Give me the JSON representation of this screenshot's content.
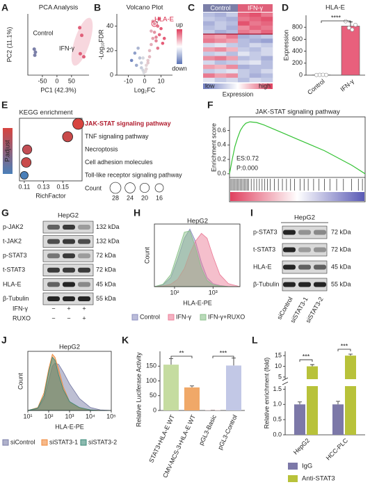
{
  "A": {
    "letter": "A",
    "title": "PCA Analysis",
    "xlabel": "PC1 (42.3%)",
    "ylabel": "PC2 (11.1%)",
    "xlim": [
      -100,
      110
    ],
    "ylim": [
      -40,
      40
    ],
    "xticks": [
      -50,
      0,
      50
    ],
    "groups": [
      {
        "name": "Control",
        "color": "#7b7fa8",
        "x": [
          -78,
          -76,
          -74
        ],
        "y": [
          -6,
          -14,
          -10
        ]
      },
      {
        "name": "IFN-γ",
        "color": "#e0607a",
        "x": [
          78,
          85,
          80,
          92
        ],
        "y": [
          22,
          12,
          -12,
          -16
        ]
      }
    ]
  },
  "B": {
    "letter": "B",
    "title": "Volcano Plot",
    "xlabel": "Log₂FC",
    "ylabel": "-Log₁₀FDR",
    "xlim": [
      -17,
      17
    ],
    "ylim": [
      0,
      50
    ],
    "xticks": [
      -10,
      0,
      10
    ],
    "yticks": [
      0,
      20,
      40
    ],
    "up_color": "#e0405f",
    "down_color": "#5a73b5",
    "legend": [
      "up",
      "down"
    ],
    "x": [
      -8,
      -6,
      -5,
      -4,
      -3,
      -2,
      -1,
      -0.5,
      0.5,
      1,
      2,
      3,
      4,
      5,
      6,
      7,
      8,
      9,
      10,
      11,
      12,
      3,
      5,
      -2,
      2,
      4,
      6,
      8,
      1,
      -1,
      7,
      9
    ],
    "y": [
      12,
      18,
      8,
      22,
      14,
      6,
      4,
      2,
      3,
      5,
      10,
      15,
      25,
      30,
      35,
      28,
      40,
      33,
      38,
      26,
      30,
      20,
      44,
      10,
      12,
      36,
      42,
      22,
      8,
      14,
      31,
      46
    ],
    "highlight": {
      "label": "HLA-E",
      "x": 6,
      "y": 42
    }
  },
  "C": {
    "letter": "C",
    "groups": [
      "Control",
      "IFN-γ"
    ],
    "group_colors": [
      "#7b7fa8",
      "#e0607a"
    ],
    "low_color": "#6f7cc0",
    "high_color": "#e0405f",
    "legend": {
      "low": "low",
      "high": "high",
      "title": "Expression"
    },
    "matrix": [
      [
        -0.5,
        -0.6,
        -0.4,
        0.8,
        0.9,
        0.7
      ],
      [
        -0.4,
        -0.5,
        -0.6,
        0.7,
        0.8,
        0.9
      ],
      [
        -0.6,
        -0.4,
        -0.5,
        0.9,
        0.7,
        0.8
      ],
      [
        -0.5,
        -0.4,
        -0.6,
        0.6,
        0.8,
        0.7
      ],
      [
        -0.4,
        -0.6,
        -0.5,
        0.7,
        0.6,
        0.8
      ],
      [
        0.6,
        0.5,
        0.7,
        -0.6,
        -0.5,
        -0.4
      ],
      [
        0.7,
        0.6,
        0.5,
        -0.5,
        -0.6,
        -0.7
      ],
      [
        -0.3,
        -0.2,
        -0.4,
        -0.5,
        -0.3,
        -0.4
      ],
      [
        0.5,
        0.6,
        0.4,
        -0.4,
        -0.5,
        -0.3
      ],
      [
        -0.4,
        -0.3,
        -0.5,
        -0.2,
        -0.4,
        -0.3
      ],
      [
        0.6,
        0.7,
        0.5,
        -0.5,
        -0.4,
        -0.6
      ],
      [
        -0.3,
        -0.5,
        -0.4,
        -0.3,
        -0.2,
        -0.5
      ],
      [
        0.5,
        0.4,
        0.6,
        -0.6,
        -0.5,
        -0.5
      ],
      [
        -0.4,
        -0.3,
        -0.2,
        -0.4,
        -0.5,
        -0.3
      ],
      [
        0.7,
        0.5,
        0.6,
        -0.4,
        -0.6,
        -0.5
      ],
      [
        -0.2,
        -0.4,
        -0.3,
        -0.5,
        -0.3,
        -0.4
      ]
    ]
  },
  "D": {
    "letter": "D",
    "title": "HLA-E",
    "ylabel": "Expression",
    "categories": [
      "Control",
      "IFN-γ"
    ],
    "values": [
      4,
      820
    ],
    "errors": [
      2,
      70
    ],
    "points": [
      [
        3,
        5,
        6,
        4
      ],
      [
        900,
        790,
        760,
        840
      ]
    ],
    "colors": [
      "#ffffff",
      "#e8607c"
    ],
    "ylim": [
      0,
      1000
    ],
    "yticks": [
      0,
      200,
      400,
      600,
      800
    ],
    "significance": "****"
  },
  "E": {
    "letter": "E",
    "title": "KEGG enrichment",
    "xlabel": "RichFactor",
    "color_label": "P.adjust",
    "size_label": "Count",
    "xlim": [
      0.105,
      0.17
    ],
    "xticks": [
      0.11,
      0.13,
      0.15
    ],
    "pathways": [
      "JAK-STAT signaling pathway",
      "TNF signaling pathway",
      "Necroptosis",
      "Cell adhesion molecules",
      "Toll-like receptor signaling pathway"
    ],
    "richfactor": [
      0.166,
      0.155,
      0.113,
      0.112,
      0.11
    ],
    "count": [
      28,
      24,
      20,
      22,
      14
    ],
    "colors": [
      "#d7443f",
      "#c94a4a",
      "#c34e55",
      "#c94a4a",
      "#4a7fb8"
    ],
    "colorbar_colors": [
      "#d7443f",
      "#4a7fb8"
    ],
    "size_legend": [
      28,
      24,
      20,
      16
    ]
  },
  "F": {
    "letter": "F",
    "title": "JAK-STAT signaling pathway",
    "ylabel": "Enrichment score",
    "es": "ES:0.72",
    "p": "P:0.000",
    "color": "#33c233",
    "xlim": [
      0,
      100
    ],
    "ylim": [
      -0.05,
      0.75
    ],
    "yticks": [
      {
        "value": 0,
        "label": "0.0"
      },
      0.2,
      0.4,
      0.6
    ],
    "x": [
      0,
      2,
      4,
      6,
      8,
      10,
      12,
      15,
      20,
      25,
      30,
      40,
      50,
      60,
      70,
      80,
      90,
      100
    ],
    "values": [
      0,
      0.2,
      0.38,
      0.5,
      0.6,
      0.66,
      0.7,
      0.72,
      0.71,
      0.68,
      0.64,
      0.56,
      0.48,
      0.4,
      0.32,
      0.22,
      0.12,
      0
    ],
    "hits": [
      1,
      2,
      3,
      4,
      5,
      6,
      7,
      8,
      9,
      10,
      11,
      12,
      13,
      14,
      16,
      18,
      20,
      22,
      24,
      26,
      28,
      30,
      33,
      36,
      39,
      42,
      45,
      48,
      52,
      55,
      58,
      62,
      66,
      70,
      74,
      79,
      84,
      90,
      95,
      98
    ],
    "rank_colors": [
      "#e0405f",
      "#ffffff",
      "#5a5ab5"
    ]
  },
  "G": {
    "letter": "G",
    "title": "HepG2",
    "rows": [
      {
        "name": "p-JAK2",
        "size": "132 kDa"
      },
      {
        "name": "t-JAK2",
        "size": "132 kDa"
      },
      {
        "name": "p-STAT3",
        "size": "72 kDa"
      },
      {
        "name": "t-STAT3",
        "size": "72 kDa"
      },
      {
        "name": "HLA-E",
        "size": "45 kDa"
      },
      {
        "name": "β-Tubulin",
        "size": "55 kDa"
      }
    ],
    "band_intensity": [
      [
        0.6,
        0.8,
        0.3
      ],
      [
        0.7,
        0.8,
        0.7
      ],
      [
        0.5,
        0.8,
        0.3
      ],
      [
        0.8,
        0.8,
        0.8
      ],
      [
        0.6,
        0.9,
        0.4
      ],
      [
        0.9,
        0.9,
        0.9
      ]
    ],
    "treatments": [
      {
        "name": "IFN-γ",
        "signs": [
          "−",
          "+",
          "+"
        ]
      },
      {
        "name": "RUXO",
        "signs": [
          "−",
          "−",
          "+"
        ]
      }
    ]
  },
  "H": {
    "letter": "H",
    "title": "HepG2",
    "xlabel": "HLA-E-PE",
    "ylabel": "Count",
    "xlim": [
      30,
      5000
    ],
    "ylim": [
      0,
      100
    ],
    "xticks": [
      {
        "value": 100,
        "label": "10²"
      },
      {
        "value": 1000,
        "label": "10³"
      }
    ],
    "x": [
      30,
      50,
      80,
      120,
      180,
      250,
      350,
      500,
      700,
      1000,
      1500,
      2500,
      5000
    ],
    "series": [
      {
        "name": "Control",
        "color": "#8d8fc0",
        "values": [
          0,
          3,
          15,
          45,
          80,
          95,
          75,
          40,
          15,
          5,
          2,
          0,
          0
        ]
      },
      {
        "name": "IFN-γ",
        "color": "#ec7f9a",
        "values": [
          0,
          1,
          4,
          12,
          30,
          55,
          75,
          88,
          80,
          50,
          20,
          5,
          0
        ]
      },
      {
        "name": "IFN-γ+RUXO",
        "color": "#8cc28c",
        "values": [
          0,
          4,
          20,
          55,
          90,
          92,
          65,
          30,
          10,
          3,
          1,
          0,
          0
        ]
      }
    ]
  },
  "I": {
    "letter": "I",
    "title": "HepG2",
    "rows": [
      {
        "name": "p-STAT3",
        "size": "72 kDa"
      },
      {
        "name": "t-STAT3",
        "size": "72 kDa"
      },
      {
        "name": "HLA-E",
        "size": "45 kDa"
      },
      {
        "name": "β-Tubulin",
        "size": "55 kDa"
      }
    ],
    "band_intensity": [
      [
        0.9,
        0.35,
        0.4
      ],
      [
        0.9,
        0.3,
        0.35
      ],
      [
        0.9,
        0.6,
        0.6
      ],
      [
        0.9,
        0.9,
        0.9
      ]
    ],
    "lanes": [
      "siControl",
      "siSTAT3-1",
      "siSTAT3-2"
    ]
  },
  "J": {
    "letter": "J",
    "title": "HepG2",
    "xlabel": "HLA-E-PE",
    "ylabel": "Count",
    "xlim": [
      10,
      100000
    ],
    "ylim": [
      0,
      100
    ],
    "xticks": [
      {
        "value": 10,
        "label": "10¹"
      },
      {
        "value": 100,
        "label": "10²"
      },
      {
        "value": 1000,
        "label": "10³"
      },
      {
        "value": 10000,
        "label": "10⁴"
      },
      {
        "value": 100000,
        "label": "10⁵"
      }
    ],
    "x": [
      10,
      30,
      60,
      100,
      150,
      200,
      300,
      500,
      1000,
      3000,
      10000,
      30000,
      100000
    ],
    "series": [
      {
        "name": "siControl",
        "color": "#7b7fa8",
        "values": [
          0,
          3,
          20,
          50,
          75,
          80,
          78,
          65,
          45,
          20,
          5,
          1,
          0
        ]
      },
      {
        "name": "siSTAT3-1",
        "color": "#f08a3c",
        "values": [
          0,
          5,
          30,
          70,
          95,
          90,
          70,
          40,
          15,
          4,
          1,
          0,
          0
        ]
      },
      {
        "name": "siSTAT3-2",
        "color": "#3d8a7a",
        "values": [
          0,
          4,
          25,
          65,
          90,
          85,
          60,
          35,
          15,
          5,
          1,
          0,
          0
        ]
      }
    ]
  },
  "K": {
    "letter": "K",
    "ylabel": "Relative Luciferase Activity",
    "categories": [
      "STAT3+HLA-E WT",
      "CMV-MCS-3+HLA-E WT",
      "pGL3-Basic",
      "pGL3-Control"
    ],
    "values": [
      155,
      78,
      1,
      152
    ],
    "errors": [
      20,
      5,
      0,
      25
    ],
    "colors": [
      "#c5dca0",
      "#f0a868",
      "#f5c9cf",
      "#c2c8e6"
    ],
    "ylim": [
      0,
      200
    ],
    "yticks": [
      0,
      50,
      100,
      150
    ],
    "significance": [
      "**",
      "***"
    ]
  },
  "L": {
    "letter": "L",
    "ylabel": "Relative enrichment (fold)",
    "categories": [
      "HepG2",
      "HCC-PLC"
    ],
    "series": [
      {
        "name": "IgG",
        "color": "#7c78a8",
        "values": [
          1,
          1
        ],
        "errors": [
          0.08,
          0.1
        ]
      },
      {
        "name": "Anti-STAT3",
        "color": "#b8c23a",
        "values": [
          10,
          15
        ],
        "errors": [
          0.8,
          0.7
        ]
      }
    ],
    "lower_ylim": [
      0,
      1.6
    ],
    "lower_yticks": [
      {
        "value": 0,
        "label": "0.0"
      },
      0.5,
      {
        "value": 1,
        "label": "1.0"
      },
      1.5
    ],
    "upper_ylim": [
      4,
      17
    ],
    "upper_yticks": [
      5,
      10,
      15
    ],
    "significance": [
      "***",
      "***"
    ]
  }
}
